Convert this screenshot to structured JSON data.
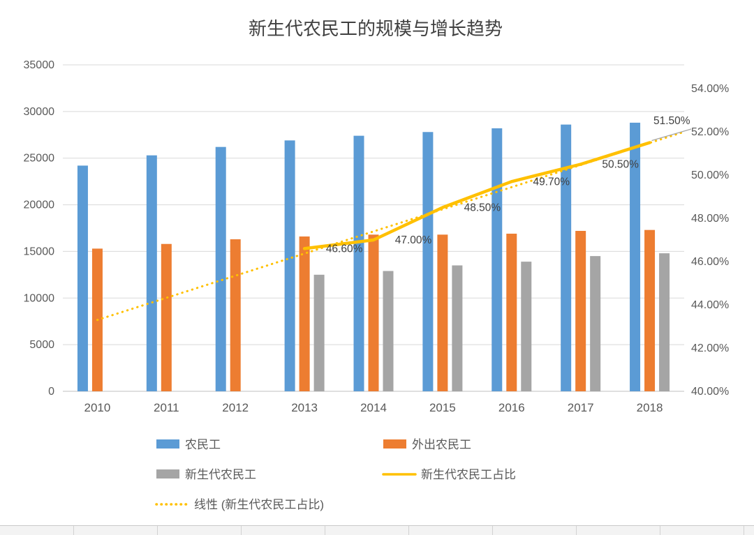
{
  "title": "新生代农民工的规模与增长趋势",
  "colors": {
    "bar_blue": "#5B9BD5",
    "bar_orange": "#ED7D31",
    "bar_gray": "#A5A5A5",
    "line_yellow": "#FFC000",
    "gridline": "#D9D9D9",
    "axis_line": "#BFBFBF",
    "axis_text": "#595959",
    "title_text": "#404040",
    "data_label_text": "#404040",
    "leader_line": "#A6A6A6"
  },
  "chart_data": {
    "type": "combo-bar-line",
    "title": "新生代农民工的规模与增长趋势",
    "categories": [
      "2010",
      "2011",
      "2012",
      "2013",
      "2014",
      "2015",
      "2016",
      "2017",
      "2018"
    ],
    "series": [
      {
        "name": "农民工",
        "type": "bar",
        "axis": "left",
        "color": "#5B9BD5",
        "values": [
          24200,
          25300,
          26200,
          26900,
          27400,
          27800,
          28200,
          28600,
          28800
        ]
      },
      {
        "name": "外出农民工",
        "type": "bar",
        "axis": "left",
        "color": "#ED7D31",
        "values": [
          15300,
          15800,
          16300,
          16600,
          16800,
          16800,
          16900,
          17200,
          17300
        ]
      },
      {
        "name": "新生代农民工",
        "type": "bar",
        "axis": "left",
        "color": "#A5A5A5",
        "values": [
          null,
          null,
          null,
          12500,
          12900,
          13500,
          13900,
          14500,
          14800
        ]
      },
      {
        "name": "新生代农民工占比",
        "type": "line",
        "axis": "right",
        "color": "#FFC000",
        "values": [
          null,
          null,
          null,
          46.6,
          47.0,
          48.5,
          49.7,
          50.5,
          51.5
        ],
        "labels": [
          "",
          "",
          "",
          "46.60%",
          "47.00%",
          "48.50%",
          "49.70%",
          "50.50%",
          "51.50%"
        ]
      },
      {
        "name": "线性 (新生代农民工占比)",
        "type": "trendline",
        "axis": "right",
        "style": "dotted",
        "color": "#FFC000",
        "start_value": 43.3,
        "end_value": 52.0
      }
    ],
    "left_axis": {
      "min": 0,
      "max": 35000,
      "step": 5000,
      "ticks": [
        "0",
        "5000",
        "10000",
        "15000",
        "20000",
        "25000",
        "30000",
        "35000"
      ]
    },
    "right_axis": {
      "min": 40,
      "max": 54,
      "step": 2,
      "ticks": [
        "40.00%",
        "42.00%",
        "44.00%",
        "46.00%",
        "48.00%",
        "50.00%",
        "52.00%",
        "54.00%"
      ]
    },
    "legend_position": "bottom",
    "grid": "horizontal"
  },
  "legend": {
    "items": [
      {
        "label": "农民工",
        "swatch": "bar",
        "color": "#5B9BD5",
        "col": 0,
        "row": 0
      },
      {
        "label": "外出农民工",
        "swatch": "bar",
        "color": "#ED7D31",
        "col": 1,
        "row": 0
      },
      {
        "label": "新生代农民工",
        "swatch": "bar",
        "color": "#A5A5A5",
        "col": 0,
        "row": 1
      },
      {
        "label": "新生代农民工占比",
        "swatch": "line",
        "color": "#FFC000",
        "col": 1,
        "row": 1
      },
      {
        "label": "线性 (新生代农民工占比)",
        "swatch": "dotted-line",
        "color": "#FFC000",
        "col": 0,
        "row": 2
      }
    ]
  }
}
